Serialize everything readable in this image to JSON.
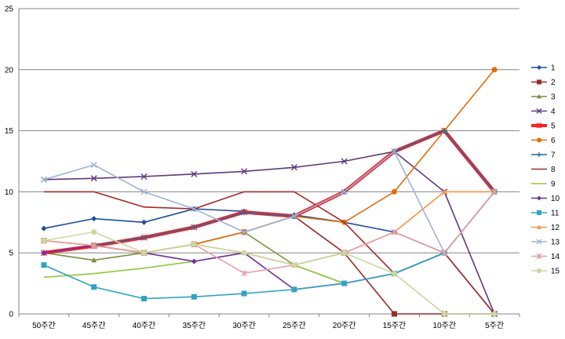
{
  "chart_data": {
    "type": "line",
    "categories": [
      "50주간",
      "45주간",
      "40주간",
      "35주간",
      "30주간",
      "25주간",
      "20주간",
      "15주간",
      "10주간",
      "5주간"
    ],
    "ylim": [
      0,
      25
    ],
    "yticks": [
      "0",
      "5",
      "10",
      "15",
      "20",
      "25"
    ],
    "grid": "horizontal",
    "legend_position": "right",
    "series": [
      {
        "name": "1",
        "color": "#1f4e9a",
        "marker": "diamond",
        "values": [
          7.0,
          7.8,
          7.5,
          8.6,
          8.4,
          8.1,
          7.5,
          6.7,
          5.0,
          0
        ]
      },
      {
        "name": "2",
        "color": "#9b2a2a",
        "marker": "square",
        "values": [
          6.0,
          5.6,
          5.0,
          5.7,
          6.7,
          8.0,
          5.0,
          0,
          0,
          0
        ]
      },
      {
        "name": "3",
        "color": "#76923c",
        "marker": "triangle",
        "values": [
          5.0,
          4.4,
          5.0,
          5.7,
          6.7,
          4.0,
          2.5,
          3.3,
          5.0,
          10.0
        ]
      },
      {
        "name": "4",
        "color": "#5f3a7a",
        "marker": "x",
        "values": [
          11.0,
          11.1,
          11.25,
          11.45,
          11.67,
          12.0,
          12.5,
          13.3,
          10.0,
          0
        ]
      },
      {
        "name": "5",
        "color": "#ff2020",
        "marker": "star",
        "values": [
          5.0,
          5.56,
          6.25,
          7.1,
          8.33,
          8.0,
          10.0,
          13.3,
          15.0,
          10.0
        ]
      },
      {
        "name": "6",
        "color": "#e36c09",
        "marker": "circle",
        "values": [
          6.0,
          5.6,
          5.0,
          5.7,
          6.7,
          8.0,
          7.5,
          10.0,
          15.0,
          20.0
        ]
      },
      {
        "name": "7",
        "color": "#1f6fa8",
        "marker": "plus",
        "values": [
          5.0,
          5.6,
          6.25,
          7.1,
          8.3,
          8.0,
          10.0,
          13.3,
          15.0,
          10.0
        ]
      },
      {
        "name": "8",
        "color": "#a52a2a",
        "marker": "none",
        "values": [
          10.0,
          10.0,
          8.75,
          8.6,
          10.0,
          10.0,
          7.5,
          3.3,
          5.0,
          0
        ]
      },
      {
        "name": "9",
        "color": "#92c83e",
        "marker": "none",
        "values": [
          3.0,
          3.3,
          3.75,
          4.3,
          5.0,
          4.0,
          2.5,
          3.3,
          5.0,
          10.0
        ]
      },
      {
        "name": "10",
        "color": "#7030a0",
        "marker": "diamond",
        "values": [
          5.0,
          5.6,
          5.0,
          4.3,
          5.0,
          2.0,
          2.5,
          3.3,
          5.0,
          10.0
        ]
      },
      {
        "name": "11",
        "color": "#31a3c4",
        "marker": "square",
        "values": [
          4.0,
          2.2,
          1.25,
          1.4,
          1.67,
          2.0,
          2.5,
          3.3,
          5.0,
          10.0
        ]
      },
      {
        "name": "12",
        "color": "#f79646",
        "marker": "triangle",
        "values": [
          6.0,
          5.6,
          5.0,
          5.7,
          5.0,
          4.0,
          5.0,
          6.7,
          10.0,
          10.0
        ]
      },
      {
        "name": "13",
        "color": "#9db3d8",
        "marker": "x",
        "values": [
          11.0,
          12.2,
          10.0,
          8.6,
          6.7,
          8.0,
          10.0,
          13.3,
          5.0,
          10.0
        ]
      },
      {
        "name": "14",
        "color": "#e6a0a6",
        "marker": "star",
        "values": [
          6.0,
          5.6,
          5.0,
          5.7,
          3.33,
          4.0,
          5.0,
          6.7,
          5.0,
          10.0
        ]
      },
      {
        "name": "15",
        "color": "#c9d8a0",
        "marker": "circle",
        "values": [
          6.0,
          6.7,
          5.0,
          5.7,
          5.0,
          4.0,
          5.0,
          3.3,
          0,
          0
        ]
      }
    ]
  }
}
